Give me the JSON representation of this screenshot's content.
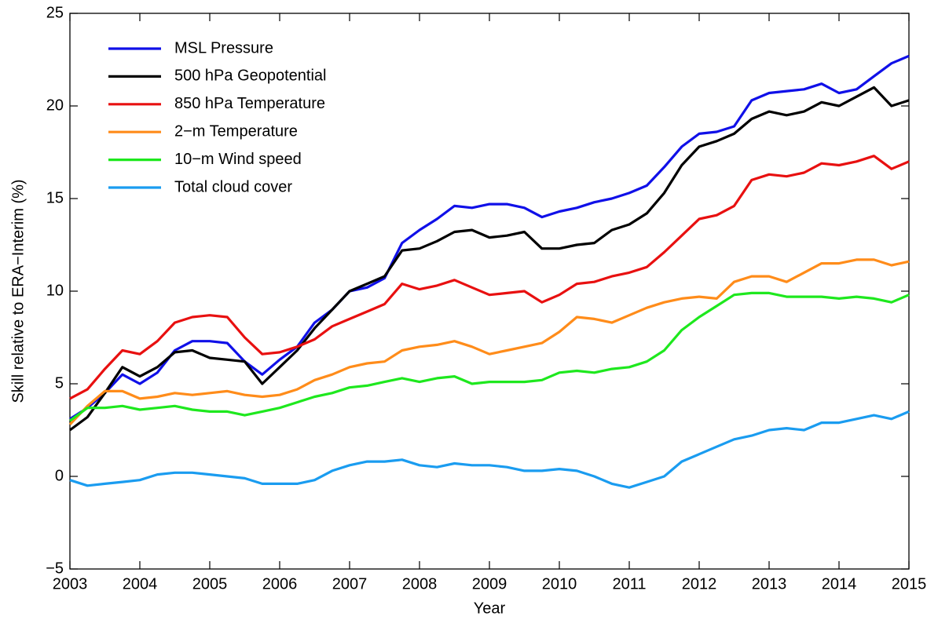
{
  "chart_data": {
    "type": "line",
    "xlabel": "Year",
    "ylabel": "Skill relative to ERA−Interim (%)",
    "x": [
      2003,
      2003.25,
      2003.5,
      2003.75,
      2004,
      2004.25,
      2004.5,
      2004.75,
      2005,
      2005.25,
      2005.5,
      2005.75,
      2006,
      2006.25,
      2006.5,
      2006.75,
      2007,
      2007.25,
      2007.5,
      2007.75,
      2008,
      2008.25,
      2008.5,
      2008.75,
      2009,
      2009.25,
      2009.5,
      2009.75,
      2010,
      2010.25,
      2010.5,
      2010.75,
      2011,
      2011.25,
      2011.5,
      2011.75,
      2012,
      2012.25,
      2012.5,
      2012.75,
      2013,
      2013.25,
      2013.5,
      2013.75,
      2014,
      2014.25,
      2014.5,
      2014.75,
      2015
    ],
    "series": [
      {
        "name": "MSL Pressure",
        "color": "#1010e8",
        "values": [
          3.1,
          3.7,
          4.5,
          5.5,
          5.0,
          5.6,
          6.8,
          7.3,
          7.3,
          7.2,
          6.2,
          5.5,
          6.3,
          7.0,
          8.3,
          9.0,
          10.0,
          10.2,
          10.7,
          12.6,
          13.3,
          13.9,
          14.6,
          14.5,
          14.7,
          14.7,
          14.5,
          14.0,
          14.3,
          14.5,
          14.8,
          15.0,
          15.3,
          15.7,
          16.7,
          17.8,
          18.5,
          18.6,
          18.9,
          20.3,
          20.7,
          20.8,
          20.9,
          21.2,
          20.7,
          20.9,
          21.6,
          22.3,
          22.7
        ]
      },
      {
        "name": "500 hPa Geopotential",
        "color": "#000000",
        "values": [
          2.5,
          3.2,
          4.5,
          5.9,
          5.4,
          5.9,
          6.7,
          6.8,
          6.4,
          6.3,
          6.2,
          5.0,
          5.9,
          6.8,
          8.0,
          9.0,
          10.0,
          10.4,
          10.8,
          12.2,
          12.3,
          12.7,
          13.2,
          13.3,
          12.9,
          13.0,
          13.2,
          12.3,
          12.3,
          12.5,
          12.6,
          13.3,
          13.6,
          14.2,
          15.3,
          16.8,
          17.8,
          18.1,
          18.5,
          19.3,
          19.7,
          19.5,
          19.7,
          20.2,
          20.0,
          20.5,
          21.0,
          20.0,
          20.3
        ]
      },
      {
        "name": "850 hPa Temperature",
        "color": "#e81010",
        "values": [
          4.2,
          4.7,
          5.8,
          6.8,
          6.6,
          7.3,
          8.3,
          8.6,
          8.7,
          8.6,
          7.5,
          6.6,
          6.7,
          7.0,
          7.4,
          8.1,
          8.5,
          8.9,
          9.3,
          10.4,
          10.1,
          10.3,
          10.6,
          10.2,
          9.8,
          9.9,
          10.0,
          9.4,
          9.8,
          10.4,
          10.5,
          10.8,
          11.0,
          11.3,
          12.1,
          13.0,
          13.9,
          14.1,
          14.6,
          16.0,
          16.3,
          16.2,
          16.4,
          16.9,
          16.8,
          17.0,
          17.3,
          16.6,
          17.0
        ]
      },
      {
        "name": "2−m Temperature",
        "color": "#ff8c1a",
        "values": [
          2.8,
          3.8,
          4.6,
          4.6,
          4.2,
          4.3,
          4.5,
          4.4,
          4.5,
          4.6,
          4.4,
          4.3,
          4.4,
          4.7,
          5.2,
          5.5,
          5.9,
          6.1,
          6.2,
          6.8,
          7.0,
          7.1,
          7.3,
          7.0,
          6.6,
          6.8,
          7.0,
          7.2,
          7.8,
          8.6,
          8.5,
          8.3,
          8.7,
          9.1,
          9.4,
          9.6,
          9.7,
          9.6,
          10.5,
          10.8,
          10.8,
          10.5,
          11.0,
          11.5,
          11.5,
          11.7,
          11.7,
          11.4,
          11.6
        ]
      },
      {
        "name": "10−m Wind speed",
        "color": "#1ee81e",
        "values": [
          3.0,
          3.7,
          3.7,
          3.8,
          3.6,
          3.7,
          3.8,
          3.6,
          3.5,
          3.5,
          3.3,
          3.5,
          3.7,
          4.0,
          4.3,
          4.5,
          4.8,
          4.9,
          5.1,
          5.3,
          5.1,
          5.3,
          5.4,
          5.0,
          5.1,
          5.1,
          5.1,
          5.2,
          5.6,
          5.7,
          5.6,
          5.8,
          5.9,
          6.2,
          6.8,
          7.9,
          8.6,
          9.2,
          9.8,
          9.9,
          9.9,
          9.7,
          9.7,
          9.7,
          9.6,
          9.7,
          9.6,
          9.4,
          9.8
        ]
      },
      {
        "name": "Total cloud cover",
        "color": "#1a9cf0",
        "values": [
          -0.2,
          -0.5,
          -0.4,
          -0.3,
          -0.2,
          0.1,
          0.2,
          0.2,
          0.1,
          0.0,
          -0.1,
          -0.4,
          -0.4,
          -0.4,
          -0.2,
          0.3,
          0.6,
          0.8,
          0.8,
          0.9,
          0.6,
          0.5,
          0.7,
          0.6,
          0.6,
          0.5,
          0.3,
          0.3,
          0.4,
          0.3,
          0.0,
          -0.4,
          -0.6,
          -0.3,
          0.0,
          0.8,
          1.2,
          1.6,
          2.0,
          2.2,
          2.5,
          2.6,
          2.5,
          2.9,
          2.9,
          3.1,
          3.3,
          3.1,
          3.5
        ]
      }
    ],
    "xlim": [
      2003,
      2015
    ],
    "xticks": [
      2003,
      2004,
      2005,
      2006,
      2007,
      2008,
      2009,
      2010,
      2011,
      2012,
      2013,
      2014,
      2015
    ],
    "ylim": [
      -5,
      25
    ],
    "yticks": [
      {
        "value": -5,
        "label": "−5"
      },
      0,
      5,
      10,
      15,
      20,
      25
    ],
    "grid": false,
    "legend": "upper-left"
  }
}
